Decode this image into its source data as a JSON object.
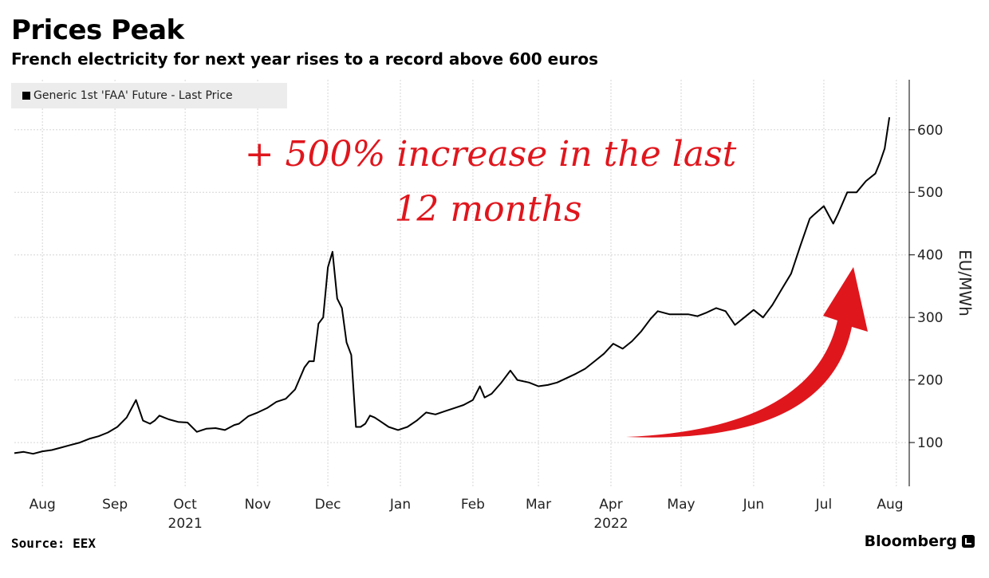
{
  "chart_data": {
    "type": "line",
    "title": "Prices Peak",
    "subtitle": "French electricity for next year rises to a record above 600 euros",
    "ylabel": "EU/MWh",
    "ylim": [
      30,
      680
    ],
    "yticks": [
      100,
      200,
      300,
      400,
      500,
      600
    ],
    "xlim": [
      0,
      375
    ],
    "x_unit": "days since 2021-07-20",
    "months": [
      {
        "label": "Aug",
        "x": 12
      },
      {
        "label": "Sep",
        "x": 43
      },
      {
        "label": "Oct",
        "x": 73
      },
      {
        "label": "Nov",
        "x": 104
      },
      {
        "label": "Dec",
        "x": 134
      },
      {
        "label": "Jan",
        "x": 165
      },
      {
        "label": "Feb",
        "x": 196
      },
      {
        "label": "Mar",
        "x": 224
      },
      {
        "label": "Apr",
        "x": 255
      },
      {
        "label": "May",
        "x": 285
      },
      {
        "label": "Jun",
        "x": 316
      },
      {
        "label": "Jul",
        "x": 346
      },
      {
        "label": "Aug",
        "x": 377
      }
    ],
    "years": [
      {
        "label": "2021",
        "x": 73
      },
      {
        "label": "2022",
        "x": 255
      }
    ],
    "legend": {
      "position": "top-left"
    },
    "series": [
      {
        "name": "Generic 1st 'FAA' Future - Last Price",
        "color": "#000000",
        "x": [
          0,
          4,
          8,
          12,
          16,
          20,
          24,
          28,
          32,
          36,
          40,
          44,
          48,
          52,
          55,
          58,
          60,
          62,
          64,
          66,
          70,
          74,
          78,
          82,
          86,
          90,
          94,
          96,
          100,
          104,
          108,
          112,
          116,
          120,
          124,
          126,
          128,
          130,
          132,
          134,
          136,
          138,
          140,
          142,
          144,
          146,
          148,
          150,
          152,
          154,
          156,
          160,
          164,
          168,
          172,
          176,
          180,
          184,
          188,
          192,
          196,
          199,
          201,
          204,
          208,
          212,
          215,
          220,
          224,
          228,
          232,
          236,
          240,
          244,
          248,
          252,
          256,
          260,
          264,
          268,
          272,
          275,
          280,
          284,
          288,
          292,
          296,
          300,
          304,
          308,
          312,
          316,
          320,
          324,
          328,
          332,
          336,
          340,
          342,
          346,
          350,
          352,
          356,
          360,
          364,
          368,
          370,
          372,
          374
        ],
        "y": [
          83,
          85,
          82,
          86,
          88,
          92,
          96,
          100,
          106,
          110,
          116,
          125,
          140,
          168,
          135,
          130,
          135,
          143,
          140,
          137,
          133,
          132,
          117,
          122,
          123,
          120,
          128,
          130,
          142,
          148,
          155,
          165,
          170,
          185,
          220,
          230,
          230,
          290,
          300,
          380,
          405,
          330,
          315,
          260,
          240,
          125,
          125,
          130,
          143,
          140,
          135,
          125,
          120,
          125,
          135,
          148,
          145,
          150,
          155,
          160,
          168,
          190,
          172,
          178,
          195,
          215,
          200,
          196,
          190,
          192,
          196,
          203,
          210,
          218,
          230,
          242,
          258,
          250,
          262,
          278,
          298,
          310,
          305,
          305,
          305,
          302,
          308,
          315,
          310,
          288,
          300,
          312,
          300,
          320,
          345,
          370,
          415,
          458,
          465,
          478,
          450,
          465,
          500,
          500,
          518,
          530,
          548,
          570,
          620
        ]
      }
    ],
    "annotation": {
      "line1": "+ 500% increase in the last",
      "line2": "12 months",
      "color": "#e0161d"
    }
  },
  "footer": {
    "source": "Source: EEX",
    "brand": "Bloomberg"
  }
}
